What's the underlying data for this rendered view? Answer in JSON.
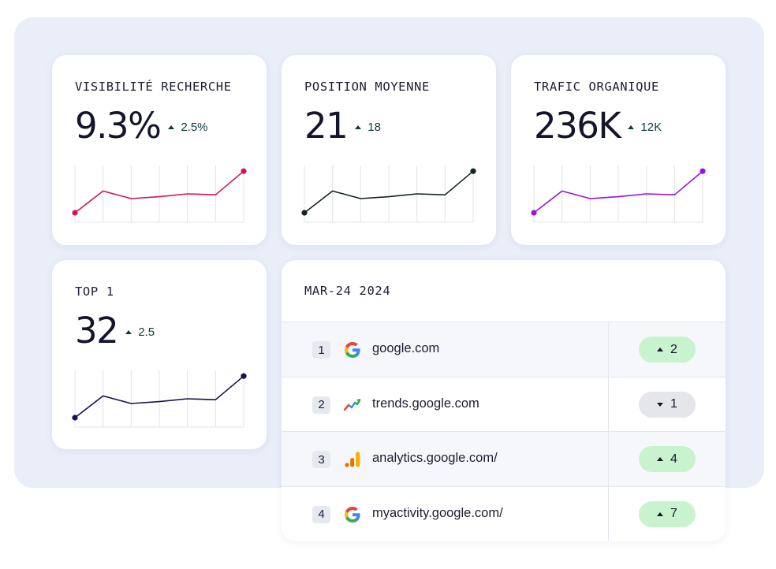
{
  "kpis": [
    {
      "title": "VISIBILITÉ RECHERCHE",
      "value": "9.3%",
      "delta": "2.5%",
      "delta_direction": "up",
      "color": "#d6144f",
      "trend": [
        10,
        33,
        25,
        27,
        30,
        29,
        54
      ]
    },
    {
      "title": "POSITION MOYENNE",
      "value": "21",
      "delta": "18",
      "delta_direction": "up",
      "color": "#14241c",
      "trend": [
        10,
        33,
        25,
        27,
        30,
        29,
        54
      ]
    },
    {
      "title": "TRAFIC ORGANIQUE",
      "value": "236K",
      "delta": "12K",
      "delta_direction": "up",
      "color": "#9a11e0",
      "trend": [
        10,
        33,
        25,
        27,
        30,
        29,
        54
      ]
    },
    {
      "title": "TOP 1",
      "value": "32",
      "delta": "2.5",
      "delta_direction": "up",
      "color": "#14134a",
      "trend": [
        10,
        33,
        25,
        27,
        30,
        29,
        54
      ]
    }
  ],
  "ranking_table": {
    "title": "MAR-24 2024",
    "rows": [
      {
        "rank": "1",
        "icon": "google-icon",
        "site": "google.com",
        "change": "2",
        "direction": "up"
      },
      {
        "rank": "2",
        "icon": "google-trends-icon",
        "site": "trends.google.com",
        "change": "1",
        "direction": "down"
      },
      {
        "rank": "3",
        "icon": "google-analytics-icon",
        "site": "analytics.google.com/",
        "change": "4",
        "direction": "up"
      },
      {
        "rank": "4",
        "icon": "google-icon",
        "site": "myactivity.google.com/",
        "change": "7",
        "direction": "up"
      }
    ]
  },
  "colors": {
    "positive_pill": "#c9f3cf",
    "neutral_pill": "#e4e6ea",
    "backdrop": "#e9eef8"
  }
}
